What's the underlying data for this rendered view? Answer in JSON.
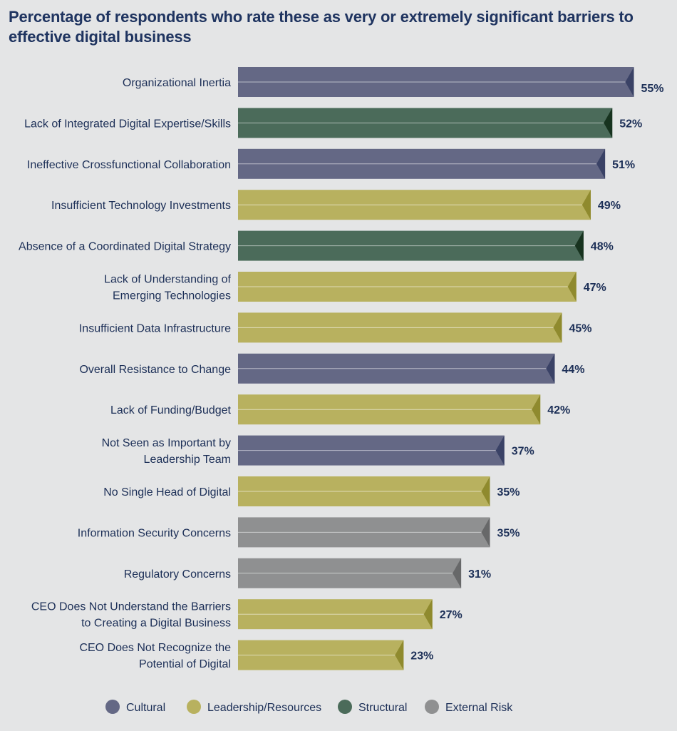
{
  "chart_data": {
    "type": "bar",
    "orientation": "horizontal",
    "title": "Percentage of respondents who rate these as very or extremely significant barriers to effective digital business",
    "value_suffix": "%",
    "xlim": [
      0,
      60
    ],
    "grid": false,
    "legend_position": "bottom",
    "groups": {
      "cultural": {
        "name": "Cultural",
        "color": "#646885",
        "tip": "#3a4266"
      },
      "leadership": {
        "name": "Leadership/Resources",
        "color": "#b8b15f",
        "tip": "#8f8a2e"
      },
      "structural": {
        "name": "Structural",
        "color": "#4b6b5a",
        "tip": "#17331f"
      },
      "external": {
        "name": "External Risk",
        "color": "#8f9091",
        "tip": "#676869"
      }
    },
    "legend_order": [
      "cultural",
      "leadership",
      "structural",
      "external"
    ],
    "bars": [
      {
        "label": [
          "Organizational Inertia"
        ],
        "value": 55,
        "group": "cultural"
      },
      {
        "label": [
          "Lack of Integrated Digital Expertise/Skills"
        ],
        "value": 52,
        "group": "structural"
      },
      {
        "label": [
          "Ineffective Crossfunctional Collaboration"
        ],
        "value": 51,
        "group": "cultural"
      },
      {
        "label": [
          "Insufficient Technology Investments"
        ],
        "value": 49,
        "group": "leadership"
      },
      {
        "label": [
          "Absence of a Coordinated Digital Strategy"
        ],
        "value": 48,
        "group": "structural"
      },
      {
        "label": [
          "Lack of Understanding of",
          "Emerging Technologies"
        ],
        "value": 47,
        "group": "leadership"
      },
      {
        "label": [
          "Insufficient Data Infrastructure"
        ],
        "value": 45,
        "group": "leadership"
      },
      {
        "label": [
          "Overall Resistance to Change"
        ],
        "value": 44,
        "group": "cultural"
      },
      {
        "label": [
          "Lack of Funding/Budget"
        ],
        "value": 42,
        "group": "leadership"
      },
      {
        "label": [
          "Not Seen as Important by",
          "Leadership Team"
        ],
        "value": 37,
        "group": "cultural"
      },
      {
        "label": [
          "No Single Head of Digital"
        ],
        "value": 35,
        "group": "leadership"
      },
      {
        "label": [
          "Information Security Concerns"
        ],
        "value": 35,
        "group": "external"
      },
      {
        "label": [
          "Regulatory Concerns"
        ],
        "value": 31,
        "group": "external"
      },
      {
        "label": [
          "CEO Does Not Understand the Barriers",
          "to Creating a Digital Business"
        ],
        "value": 27,
        "group": "leadership"
      },
      {
        "label": [
          "CEO Does Not Recognize the",
          "Potential of Digital"
        ],
        "value": 23,
        "group": "leadership"
      }
    ]
  }
}
